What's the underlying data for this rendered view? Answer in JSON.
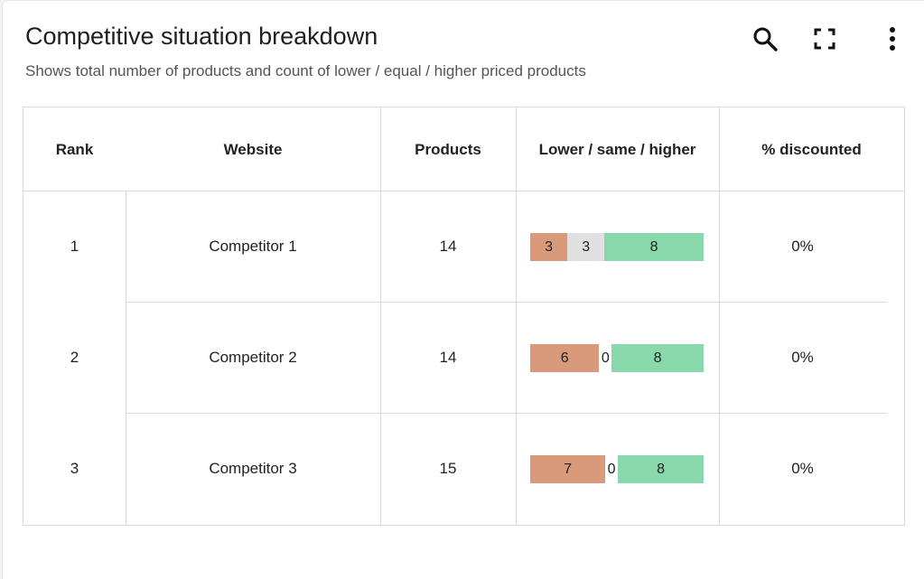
{
  "header": {
    "title": "Competitive situation breakdown",
    "subtitle": "Shows total number of products and count of lower / equal / higher priced products"
  },
  "toolbar": {
    "search_icon": "search-icon",
    "fullscreen_icon": "fullscreen-icon",
    "more_icon": "more-vert-icon"
  },
  "table": {
    "columns": [
      "Rank",
      "Website",
      "Products",
      "Lower / same / higher",
      "% discounted"
    ],
    "rows": [
      {
        "rank": "1",
        "website": "Competitor 1",
        "products": "14",
        "lower": 3,
        "same": 3,
        "higher": 8,
        "lower_label": "3",
        "same_label": "3",
        "higher_label": "8",
        "discounted": "0%"
      },
      {
        "rank": "2",
        "website": "Competitor 2",
        "products": "14",
        "lower": 6,
        "same": 0,
        "higher": 8,
        "lower_label": "6",
        "same_label": "0",
        "higher_label": "8",
        "discounted": "0%"
      },
      {
        "rank": "3",
        "website": "Competitor 3",
        "products": "15",
        "lower": 7,
        "same": 0,
        "higher": 8,
        "lower_label": "7",
        "same_label": "0",
        "higher_label": "8",
        "discounted": "0%"
      }
    ]
  },
  "colors": {
    "lower": "#d9997b",
    "same": "#e0e0e0",
    "higher": "#88d8ab"
  }
}
